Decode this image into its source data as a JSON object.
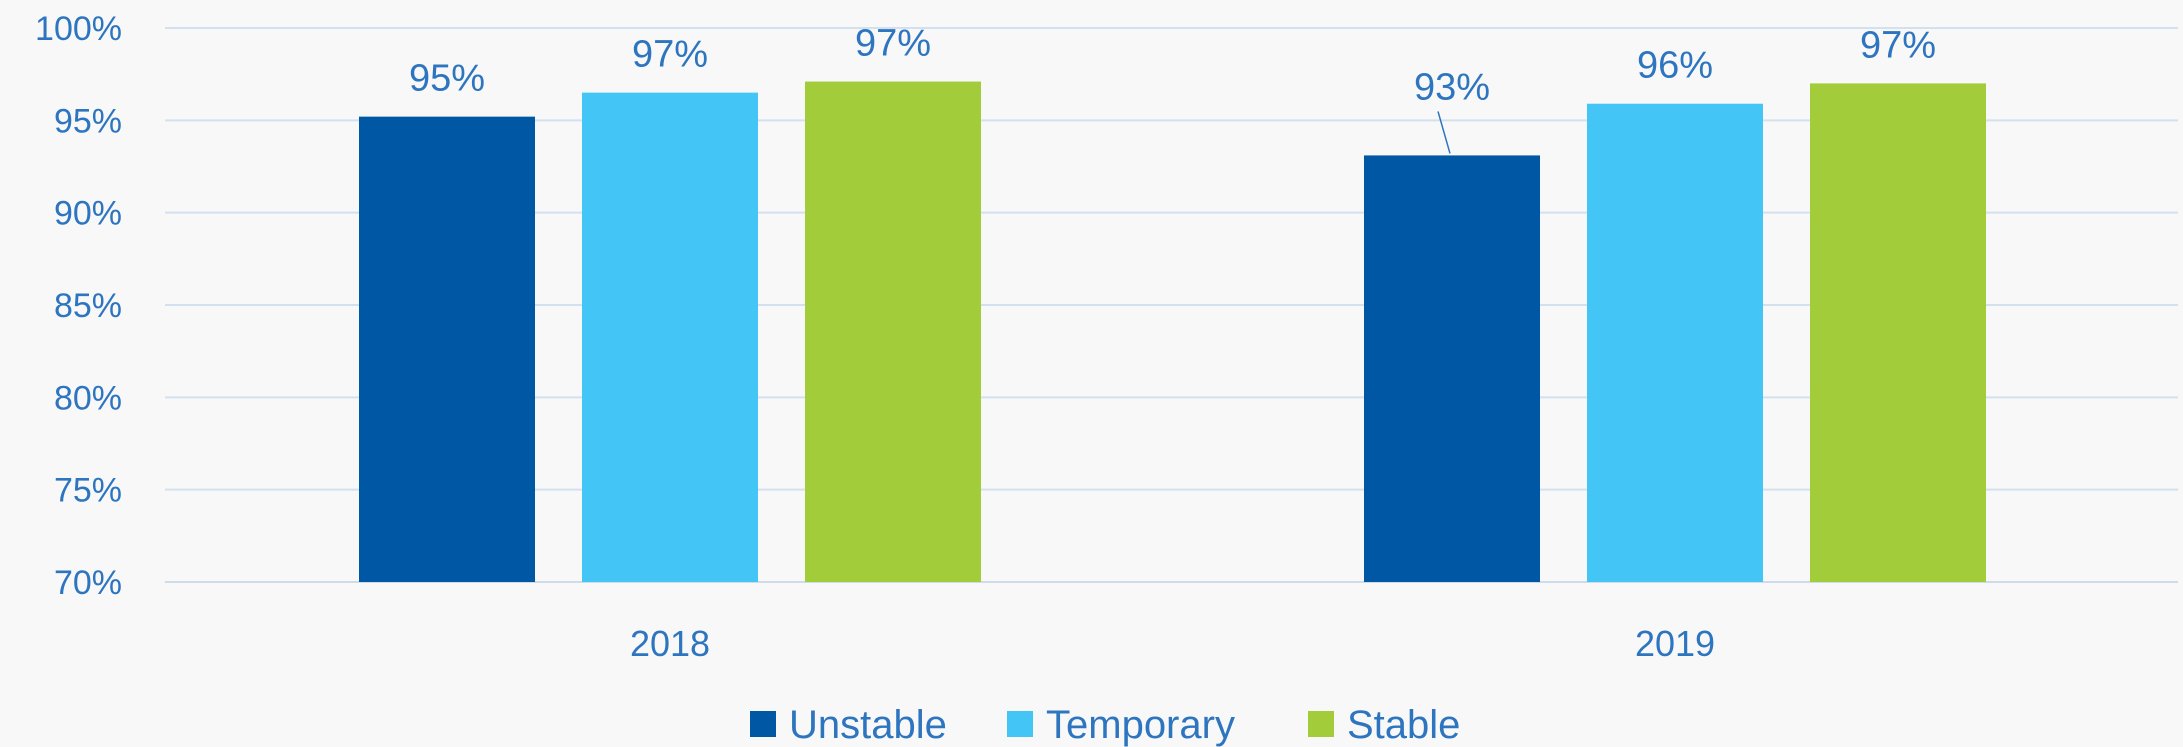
{
  "chart_data": {
    "type": "bar",
    "title": "",
    "xlabel": "",
    "ylabel": "",
    "categories": [
      "2018",
      "2019"
    ],
    "ylim": [
      70,
      100
    ],
    "yticks": [
      100,
      95,
      90,
      85,
      80,
      75,
      70
    ],
    "ytick_labels": [
      "100%",
      "95%",
      "90%",
      "85%",
      "80%",
      "75%",
      "70%"
    ],
    "grid": true,
    "legend": "bottom",
    "series": [
      {
        "name": "Unstable",
        "values": [
          95.2,
          93.1
        ],
        "labels": [
          "95%",
          "93%"
        ],
        "color": "#0057a3"
      },
      {
        "name": "Temporary",
        "values": [
          96.5,
          95.9
        ],
        "labels": [
          "97%",
          "96%"
        ],
        "color": "#43c6f5"
      },
      {
        "name": "Stable",
        "values": [
          97.1,
          97.0
        ],
        "labels": [
          "97%",
          "97%"
        ],
        "color": "#a2cc3a"
      }
    ],
    "colors": {
      "text": "#2e75c0",
      "grid": "#d3e1ef",
      "axis": "#cfdbe8"
    }
  }
}
